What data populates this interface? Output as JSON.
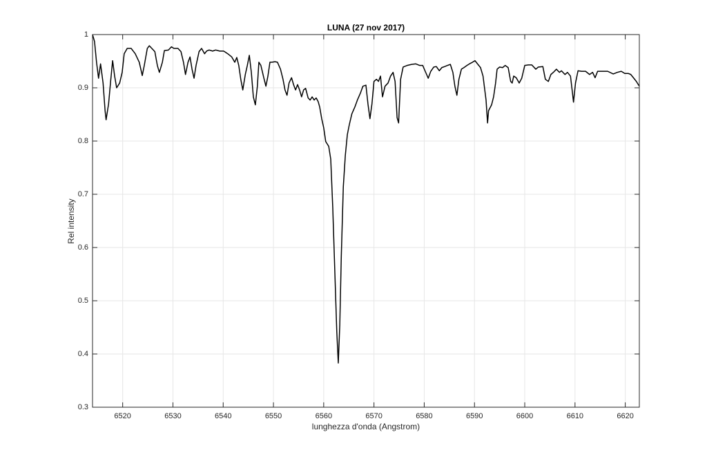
{
  "chart_data": {
    "type": "line",
    "title": "LUNA (27 nov 2017)",
    "x_label": "lunghezza d'onda (Angstrom)",
    "y_label": "Rel intensity",
    "color": "#000000",
    "grid": true,
    "xlim": [
      6514.0,
      6622.8
    ],
    "ylim": [
      0.3,
      1
    ],
    "xticks": [
      6520,
      6530,
      6540,
      6550,
      6560,
      6570,
      6580,
      6590,
      6600,
      6610,
      6620
    ],
    "yticks": [
      0.3,
      0.4,
      0.5,
      0.6,
      0.7,
      0.8,
      0.9,
      1
    ],
    "x": [
      6514.0,
      6514.4,
      6514.8,
      6515.2,
      6515.6,
      6516.1,
      6516.5,
      6516.7,
      6517.2,
      6517.6,
      6518.0,
      6518.4,
      6518.8,
      6519.4,
      6519.9,
      6520.3,
      6520.9,
      6521.7,
      6522.5,
      6523.3,
      6523.9,
      6524.3,
      6524.9,
      6525.3,
      6525.8,
      6526.4,
      6526.9,
      6527.3,
      6527.9,
      6528.3,
      6529.1,
      6529.7,
      6530.2,
      6531.0,
      6531.6,
      6532.1,
      6532.5,
      6533.0,
      6533.4,
      6533.8,
      6534.2,
      6534.6,
      6535.2,
      6535.7,
      6536.3,
      6536.7,
      6537.2,
      6537.9,
      6538.5,
      6539.3,
      6540.1,
      6540.9,
      6541.7,
      6542.3,
      6542.7,
      6543.1,
      6543.5,
      6543.9,
      6544.4,
      6544.8,
      6545.2,
      6545.6,
      6546.0,
      6546.4,
      6546.8,
      6547.1,
      6547.5,
      6548.1,
      6548.5,
      6548.9,
      6549.3,
      6549.7,
      6550.3,
      6550.8,
      6551.4,
      6551.9,
      6552.3,
      6552.7,
      6553.1,
      6553.6,
      6554.0,
      6554.4,
      6554.8,
      6555.2,
      6555.6,
      6556.0,
      6556.4,
      6556.9,
      6557.3,
      6557.7,
      6558.1,
      6558.5,
      6558.9,
      6559.2,
      6559.6,
      6560.0,
      6560.4,
      6561.0,
      6561.4,
      6561.8,
      6562.2,
      6562.6,
      6562.9,
      6563.2,
      6563.5,
      6563.9,
      6564.3,
      6564.7,
      6565.1,
      6565.6,
      6566.2,
      6566.7,
      6567.3,
      6567.8,
      6568.4,
      6568.8,
      6569.2,
      6569.6,
      6570.0,
      6570.5,
      6570.9,
      6571.3,
      6571.7,
      6572.2,
      6572.8,
      6573.3,
      6573.8,
      6574.2,
      6574.6,
      6574.9,
      6575.3,
      6575.8,
      6576.6,
      6577.5,
      6578.3,
      6579.1,
      6579.7,
      6580.2,
      6580.8,
      6581.3,
      6581.9,
      6582.4,
      6583.0,
      6583.5,
      6584.1,
      6584.6,
      6585.2,
      6585.7,
      6586.1,
      6586.5,
      6586.9,
      6587.4,
      6587.9,
      6588.5,
      6589.0,
      6589.6,
      6590.1,
      6590.6,
      6591.2,
      6591.7,
      6592.3,
      6592.6,
      6592.8,
      6593.4,
      6593.8,
      6594.2,
      6594.5,
      6595.0,
      6595.6,
      6596.1,
      6596.7,
      6597.2,
      6597.5,
      6597.8,
      6598.3,
      6598.9,
      6599.4,
      6600.0,
      6600.7,
      6601.4,
      6602.2,
      6602.7,
      6603.6,
      6604.1,
      6604.7,
      6605.2,
      6605.8,
      6606.3,
      6606.9,
      6607.3,
      6608.0,
      6608.5,
      6609.1,
      6609.5,
      6609.7,
      6610.1,
      6610.6,
      6611.3,
      6612.1,
      6612.9,
      6613.5,
      6614.0,
      6614.5,
      6615.4,
      6616.5,
      6617.6,
      6618.4,
      6619.2,
      6619.9,
      6620.6,
      6621.1,
      6621.7,
      6622.2,
      6622.8
    ],
    "values": [
      1.0,
      0.987,
      0.948,
      0.918,
      0.945,
      0.909,
      0.857,
      0.84,
      0.87,
      0.912,
      0.951,
      0.922,
      0.9,
      0.909,
      0.929,
      0.964,
      0.974,
      0.974,
      0.964,
      0.948,
      0.923,
      0.942,
      0.974,
      0.979,
      0.974,
      0.968,
      0.942,
      0.929,
      0.948,
      0.97,
      0.971,
      0.977,
      0.974,
      0.974,
      0.968,
      0.948,
      0.925,
      0.948,
      0.958,
      0.935,
      0.918,
      0.942,
      0.968,
      0.974,
      0.964,
      0.969,
      0.971,
      0.969,
      0.971,
      0.969,
      0.969,
      0.964,
      0.958,
      0.948,
      0.957,
      0.942,
      0.916,
      0.896,
      0.925,
      0.942,
      0.961,
      0.929,
      0.883,
      0.868,
      0.903,
      0.948,
      0.942,
      0.918,
      0.903,
      0.922,
      0.948,
      0.948,
      0.949,
      0.948,
      0.935,
      0.916,
      0.896,
      0.886,
      0.909,
      0.919,
      0.906,
      0.896,
      0.906,
      0.896,
      0.883,
      0.896,
      0.899,
      0.881,
      0.877,
      0.883,
      0.877,
      0.881,
      0.874,
      0.864,
      0.842,
      0.825,
      0.799,
      0.79,
      0.766,
      0.675,
      0.558,
      0.442,
      0.383,
      0.455,
      0.584,
      0.714,
      0.773,
      0.812,
      0.831,
      0.851,
      0.864,
      0.877,
      0.89,
      0.903,
      0.905,
      0.87,
      0.842,
      0.87,
      0.912,
      0.916,
      0.912,
      0.922,
      0.883,
      0.903,
      0.909,
      0.922,
      0.929,
      0.912,
      0.844,
      0.834,
      0.916,
      0.939,
      0.942,
      0.944,
      0.945,
      0.942,
      0.942,
      0.931,
      0.918,
      0.931,
      0.939,
      0.94,
      0.932,
      0.938,
      0.94,
      0.942,
      0.944,
      0.929,
      0.903,
      0.886,
      0.916,
      0.935,
      0.938,
      0.942,
      0.945,
      0.948,
      0.951,
      0.945,
      0.938,
      0.922,
      0.877,
      0.834,
      0.857,
      0.868,
      0.883,
      0.909,
      0.935,
      0.939,
      0.938,
      0.942,
      0.938,
      0.912,
      0.909,
      0.922,
      0.919,
      0.909,
      0.918,
      0.942,
      0.943,
      0.943,
      0.935,
      0.939,
      0.94,
      0.916,
      0.912,
      0.925,
      0.93,
      0.935,
      0.929,
      0.932,
      0.925,
      0.929,
      0.922,
      0.89,
      0.873,
      0.909,
      0.932,
      0.931,
      0.931,
      0.925,
      0.929,
      0.919,
      0.931,
      0.931,
      0.931,
      0.926,
      0.929,
      0.931,
      0.927,
      0.927,
      0.925,
      0.918,
      0.912,
      0.903
    ]
  }
}
